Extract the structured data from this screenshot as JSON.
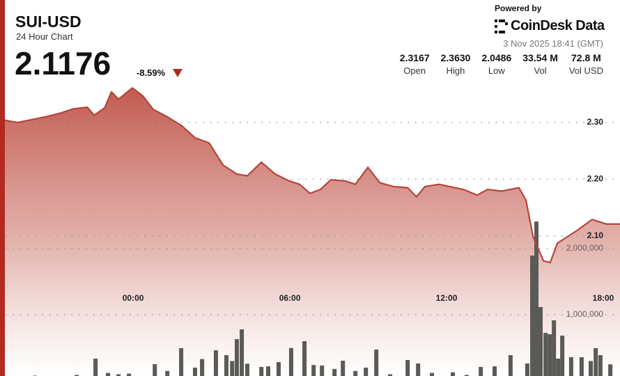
{
  "header": {
    "symbol": "SUI-USD",
    "subtitle": "24 Hour Chart",
    "price": "2.1176",
    "change": "-8.59%",
    "powered_by": "Powered by",
    "brand": "CoinDesk Data",
    "timestamp": "3 Nov 2025 18:41 (GMT)",
    "stats": [
      {
        "value": "2.3167",
        "label": "Open"
      },
      {
        "value": "2.3630",
        "label": "High"
      },
      {
        "value": "2.0486",
        "label": "Low"
      },
      {
        "value": "33.54 M",
        "label": "Vol"
      },
      {
        "value": "72.8 M",
        "label": "Vol USD"
      }
    ]
  },
  "chart_data": [
    {
      "type": "line",
      "color": "#b5443a",
      "grid": true,
      "x": [
        -4.91,
        -4.43,
        -3.89,
        -3.36,
        -2.83,
        -2.29,
        -1.76,
        -1.49,
        -1.09,
        -0.83,
        -0.56,
        -0.03,
        0.37,
        0.77,
        1.31,
        1.84,
        2.37,
        2.91,
        3.44,
        3.97,
        4.37,
        4.91,
        5.44,
        5.97,
        6.37,
        6.77,
        7.17,
        7.57,
        8.11,
        8.51,
        8.99,
        9.44,
        9.97,
        10.51,
        10.85,
        11.17,
        11.71,
        12.11,
        12.64,
        13.17,
        13.57,
        14.11,
        14.77,
        15.04,
        15.31,
        15.71,
        15.97,
        16.24,
        16.64,
        17.04,
        17.57,
        18.11,
        18.64
      ],
      "values": [
        2.304,
        2.3,
        2.305,
        2.31,
        2.316,
        2.324,
        2.327,
        2.313,
        2.326,
        2.354,
        2.341,
        2.361,
        2.347,
        2.323,
        2.31,
        2.295,
        2.273,
        2.264,
        2.225,
        2.209,
        2.206,
        2.23,
        2.209,
        2.197,
        2.191,
        2.175,
        2.182,
        2.199,
        2.197,
        2.191,
        2.221,
        2.194,
        2.187,
        2.185,
        2.169,
        2.187,
        2.191,
        2.187,
        2.182,
        2.172,
        2.182,
        2.179,
        2.185,
        2.163,
        2.099,
        2.056,
        2.053,
        2.087,
        2.099,
        2.111,
        2.129,
        2.121,
        2.121
      ],
      "xlim": [
        -4.91,
        18.64
      ],
      "xticks": [
        {
          "value": 0,
          "label": "00:00"
        },
        {
          "value": 6,
          "label": "06:00"
        },
        {
          "value": 12,
          "label": "12:00"
        },
        {
          "value": 18,
          "label": "18:00"
        }
      ],
      "ylim": [
        1.853,
        2.516
      ],
      "yticks": [
        {
          "value": 2.1,
          "label": "2.10"
        },
        {
          "value": 2.2,
          "label": "2.20"
        },
        {
          "value": 2.3,
          "label": "2.30"
        }
      ]
    },
    {
      "type": "bar",
      "color": "#5a5a56",
      "grid": true,
      "x": [
        -4.56,
        -3.76,
        -2.96,
        -2.16,
        -1.44,
        -0.96,
        -0.56,
        -0.16,
        0.83,
        1.31,
        1.84,
        2.37,
        2.64,
        3.17,
        3.57,
        3.79,
        3.97,
        4.16,
        4.37,
        4.91,
        5.17,
        5.57,
        6.05,
        6.56,
        6.91,
        7.23,
        7.71,
        8.03,
        8.51,
        8.91,
        9.31,
        9.84,
        10.51,
        10.91,
        11.44,
        12.24,
        12.77,
        13.31,
        13.84,
        14.45,
        15.09,
        15.28,
        15.44,
        15.6,
        15.79,
        15.95,
        16.11,
        16.27,
        16.43,
        16.77,
        17.17,
        17.52,
        17.71,
        17.89,
        18.27
      ],
      "values": [
        60000,
        80000,
        70000,
        90000,
        337000,
        120000,
        100000,
        110000,
        253000,
        150000,
        495000,
        200000,
        330000,
        463000,
        389000,
        300000,
        632000,
        779000,
        260000,
        211000,
        220000,
        284000,
        497000,
        600000,
        240000,
        232000,
        180000,
        305000,
        150000,
        200000,
        474000,
        100000,
        316000,
        263000,
        120000,
        130000,
        90000,
        211000,
        220000,
        389000,
        263000,
        1895000,
        2410000,
        1116000,
        726000,
        705000,
        916000,
        337000,
        684000,
        358000,
        358000,
        300000,
        495000,
        389000,
        250000
      ],
      "ylim": [
        0,
        5760000
      ],
      "yticks": [
        {
          "value": 1000000,
          "label": "1,000,000"
        },
        {
          "value": 2000000,
          "label": "2,000,000"
        }
      ]
    }
  ]
}
